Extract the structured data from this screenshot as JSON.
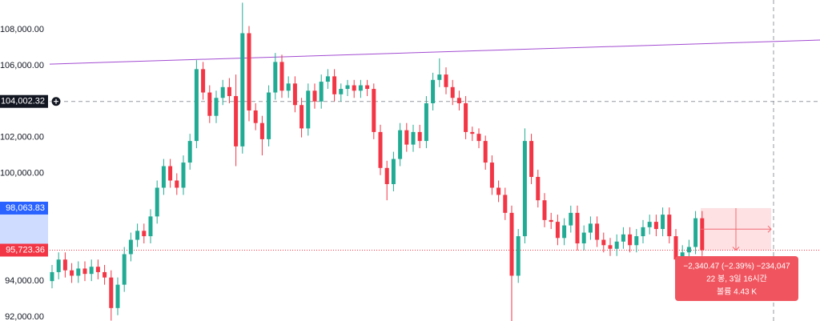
{
  "chart_data": {
    "type": "candlestick",
    "ylim": [
      91779,
      109649
    ],
    "yticks": [
      {
        "value": 92000,
        "label": "92,000.00"
      },
      {
        "value": 94000,
        "label": "94,000.00"
      },
      {
        "value": 100000,
        "label": "100,000.00"
      },
      {
        "value": 102000,
        "label": "102,000.00"
      },
      {
        "value": 106000,
        "label": "106,000.00"
      },
      {
        "value": 108000,
        "label": "108,000.00"
      }
    ],
    "grid": false,
    "up_color": "#22ab94",
    "down_color": "#f23645",
    "open": [
      94000,
      94500,
      95200,
      94600,
      94300,
      94700,
      94400,
      94800,
      94500,
      94200,
      92500,
      93800,
      95500,
      96300,
      96800,
      96500,
      97600,
      99200,
      100400,
      99600,
      99200,
      100600,
      101800,
      105800,
      104500,
      103200,
      104200,
      104800,
      104300,
      101500,
      107800,
      103500,
      102800,
      101900,
      104500,
      106200,
      104600,
      105000,
      103800,
      102500,
      104600,
      104000,
      105100,
      105400,
      104400,
      104700,
      104900,
      104600,
      104900,
      104700,
      102300,
      100300,
      99400,
      100800,
      102400,
      101600,
      102300,
      101800,
      103900,
      105200,
      105500,
      104800,
      104200,
      103900,
      102300,
      102200,
      101800,
      100600,
      99200,
      98800,
      97800,
      94300,
      96500,
      101800,
      99800,
      98500,
      97400,
      97300,
      96400,
      97100,
      97800,
      96100,
      96700,
      97200,
      96300,
      96000,
      95800,
      96200,
      96600,
      96000,
      96500,
      97000,
      97300,
      96900,
      97700,
      96500,
      95200,
      95600,
      95900,
      97500
    ],
    "high": [
      94900,
      95600,
      95600,
      95000,
      95100,
      95100,
      95200,
      95200,
      94900,
      94600,
      94200,
      95900,
      96700,
      97200,
      97200,
      98000,
      99600,
      100800,
      100800,
      100000,
      101000,
      102200,
      106300,
      106200,
      104900,
      104600,
      105200,
      105300,
      105500,
      109500,
      108200,
      103900,
      103200,
      104900,
      106700,
      106600,
      105400,
      105400,
      104200,
      105000,
      105000,
      105500,
      105800,
      105800,
      105000,
      105200,
      105200,
      105200,
      105200,
      105000,
      102700,
      100700,
      101200,
      102800,
      102800,
      102700,
      102700,
      104300,
      105600,
      106400,
      105900,
      105200,
      104600,
      104300,
      102600,
      102500,
      102100,
      101000,
      99600,
      99200,
      98200,
      96900,
      102500,
      102200,
      100200,
      98900,
      97800,
      97700,
      97500,
      98200,
      98200,
      97100,
      97600,
      97600,
      96700,
      96400,
      96600,
      97000,
      97000,
      96900,
      97400,
      97700,
      97700,
      98100,
      98100,
      96900,
      96000,
      96300,
      97900,
      97900
    ],
    "low": [
      93600,
      94100,
      94200,
      93900,
      93900,
      94000,
      94000,
      94100,
      93800,
      91800,
      92100,
      93400,
      95100,
      95900,
      96100,
      96100,
      97200,
      98800,
      99200,
      98800,
      98800,
      100200,
      101400,
      104100,
      102800,
      102800,
      103800,
      103900,
      100400,
      101100,
      102900,
      102400,
      101000,
      101500,
      104100,
      104200,
      104200,
      103400,
      102000,
      102100,
      103600,
      103600,
      104700,
      104000,
      104000,
      104300,
      104200,
      104200,
      104300,
      101900,
      99900,
      98500,
      99000,
      100400,
      101200,
      101200,
      101400,
      101400,
      103500,
      104800,
      104400,
      103800,
      103500,
      101900,
      101800,
      101400,
      100200,
      98800,
      98400,
      97400,
      91700,
      93900,
      96100,
      99400,
      98100,
      97000,
      96900,
      96000,
      96000,
      96700,
      95700,
      95700,
      96300,
      95900,
      95600,
      95400,
      95400,
      95800,
      95600,
      95600,
      96100,
      96600,
      96500,
      96500,
      96100,
      94800,
      94800,
      95200,
      95500,
      95400
    ],
    "close": [
      94500,
      95200,
      94600,
      94300,
      94700,
      94400,
      94800,
      94500,
      94200,
      92500,
      93800,
      95500,
      96300,
      96800,
      96500,
      97600,
      99200,
      100400,
      99600,
      99200,
      100600,
      101800,
      105800,
      104500,
      103200,
      104200,
      104800,
      104300,
      101500,
      107800,
      103500,
      102800,
      101900,
      104500,
      106200,
      104600,
      105000,
      103800,
      102500,
      104600,
      104000,
      105100,
      105400,
      104400,
      104700,
      104900,
      104600,
      104900,
      104700,
      102300,
      100300,
      99400,
      100800,
      102400,
      101600,
      102300,
      101800,
      103900,
      105200,
      105500,
      104800,
      104200,
      103900,
      102300,
      102200,
      101800,
      100600,
      99200,
      98800,
      97800,
      94300,
      96500,
      101800,
      99800,
      98500,
      97400,
      97300,
      96400,
      97100,
      97800,
      96100,
      96700,
      97200,
      96300,
      96000,
      95800,
      96200,
      96600,
      96000,
      96500,
      97000,
      97300,
      96900,
      97700,
      96500,
      95200,
      95600,
      95900,
      97500,
      95723.36
    ],
    "trendline": {
      "color": "#a24bd1",
      "values": [
        106080,
        107420
      ]
    },
    "crosshair_price": {
      "value": 104002.32,
      "label": "104,002.32"
    },
    "measure_top": {
      "value": 98063.83,
      "label": "98,063.83"
    },
    "last_price": {
      "value": 95723.36,
      "label": "95,723.36"
    },
    "measure_text": [
      "−2,340.47 (−2.39%) −234,047",
      "22 봉, 3일 16시간",
      "볼륨 4.43 K"
    ]
  }
}
